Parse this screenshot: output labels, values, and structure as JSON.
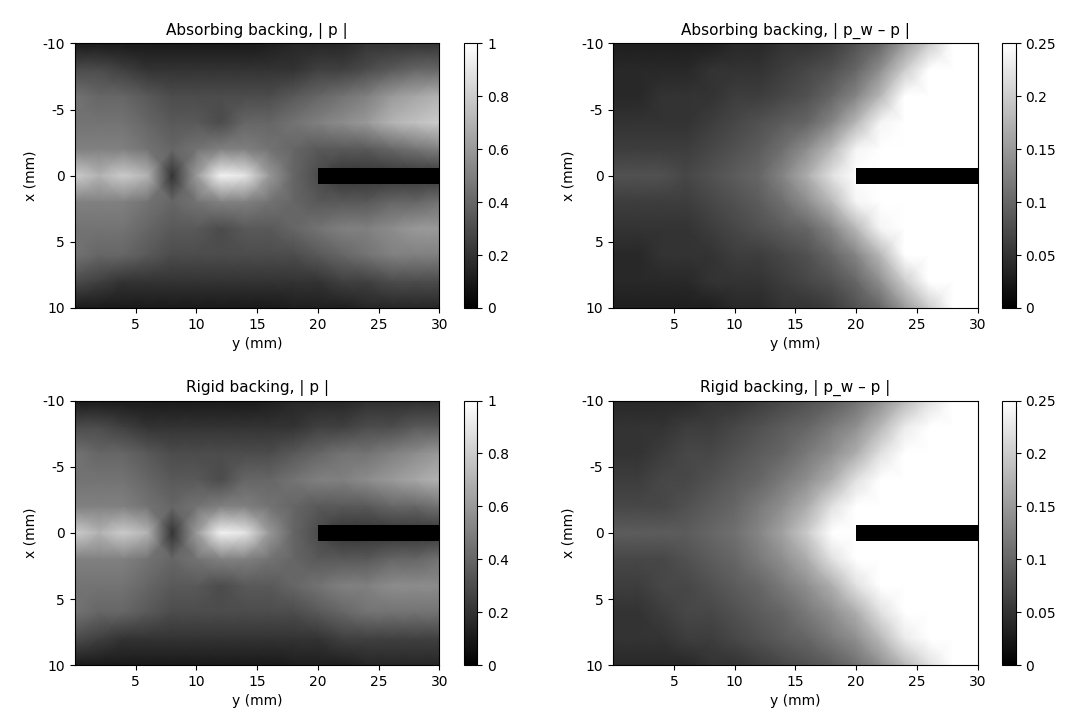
{
  "chart_data": [
    {
      "type": "heatmap",
      "title": "Absorbing backing, | p |",
      "x_label": "y (mm)",
      "y_label": "x (mm)",
      "x": [
        0,
        2,
        4,
        6,
        8,
        10,
        12,
        14,
        16,
        18,
        20,
        22,
        24,
        26,
        28,
        30
      ],
      "y": [
        -10,
        -8,
        -6,
        -4,
        -2,
        0,
        2,
        4,
        6,
        8,
        10
      ],
      "cells": [
        [
          0.1,
          0.1,
          0.1,
          0.1,
          0.1,
          0.1,
          0.1,
          0.1,
          0.12,
          0.15,
          0.15,
          0.15,
          0.2,
          0.2,
          0.2,
          0.2
        ],
        [
          0.3,
          0.3,
          0.25,
          0.2,
          0.2,
          0.2,
          0.2,
          0.2,
          0.2,
          0.2,
          0.25,
          0.25,
          0.3,
          0.35,
          0.4,
          0.4
        ],
        [
          0.45,
          0.4,
          0.4,
          0.35,
          0.3,
          0.3,
          0.3,
          0.3,
          0.3,
          0.35,
          0.4,
          0.45,
          0.5,
          0.6,
          0.65,
          0.7
        ],
        [
          0.45,
          0.45,
          0.45,
          0.4,
          0.35,
          0.35,
          0.3,
          0.4,
          0.4,
          0.45,
          0.5,
          0.55,
          0.6,
          0.7,
          0.75,
          0.8
        ],
        [
          0.5,
          0.5,
          0.5,
          0.45,
          0.4,
          0.45,
          0.5,
          0.5,
          0.45,
          0.4,
          0.35,
          0.35,
          0.35,
          0.4,
          0.45,
          0.5
        ],
        [
          0.8,
          0.7,
          0.8,
          0.7,
          0.2,
          0.6,
          0.95,
          0.9,
          0.6,
          0.4,
          0.3,
          0.2,
          0.2,
          0.2,
          0.2,
          0.2
        ],
        [
          0.5,
          0.5,
          0.5,
          0.45,
          0.4,
          0.45,
          0.5,
          0.5,
          0.45,
          0.4,
          0.35,
          0.35,
          0.35,
          0.4,
          0.4,
          0.45
        ],
        [
          0.45,
          0.45,
          0.45,
          0.4,
          0.35,
          0.35,
          0.3,
          0.35,
          0.35,
          0.4,
          0.45,
          0.5,
          0.5,
          0.55,
          0.6,
          0.6
        ],
        [
          0.45,
          0.4,
          0.4,
          0.35,
          0.3,
          0.3,
          0.3,
          0.3,
          0.3,
          0.3,
          0.35,
          0.4,
          0.45,
          0.5,
          0.5,
          0.5
        ],
        [
          0.3,
          0.25,
          0.2,
          0.2,
          0.2,
          0.2,
          0.2,
          0.2,
          0.2,
          0.2,
          0.2,
          0.25,
          0.25,
          0.3,
          0.3,
          0.3
        ],
        [
          0.1,
          0.1,
          0.1,
          0.1,
          0.1,
          0.1,
          0.1,
          0.1,
          0.1,
          0.12,
          0.12,
          0.12,
          0.15,
          0.15,
          0.15,
          0.15
        ]
      ],
      "xlim": [
        0,
        30
      ],
      "xticks": [
        5,
        10,
        15,
        20,
        25,
        30
      ],
      "ylim": [
        10,
        -10
      ],
      "yticks": [
        -10,
        -5,
        0,
        5,
        10
      ],
      "colorbar_range": [
        0,
        1
      ],
      "colorbar_ticks": [
        0,
        0.2,
        0.4,
        0.6,
        0.8,
        1
      ],
      "obstacle": {
        "x": [
          20,
          30
        ],
        "y": [
          -0.6,
          0.6
        ]
      }
    },
    {
      "type": "heatmap",
      "title": "Absorbing backing, | p_w – p |",
      "x_label": "y (mm)",
      "y_label": "x (mm)",
      "x": [
        0,
        2,
        4,
        6,
        8,
        10,
        12,
        14,
        16,
        18,
        20,
        22,
        24,
        26,
        28,
        30
      ],
      "y": [
        -10,
        -8,
        -6,
        -4,
        -2,
        0,
        2,
        4,
        6,
        8,
        10
      ],
      "cells": [
        [
          0.03,
          0.03,
          0.03,
          0.03,
          0.03,
          0.04,
          0.04,
          0.05,
          0.05,
          0.06,
          0.08,
          0.1,
          0.15,
          0.2,
          0.25,
          0.25
        ],
        [
          0.04,
          0.04,
          0.04,
          0.04,
          0.05,
          0.05,
          0.05,
          0.06,
          0.07,
          0.08,
          0.1,
          0.14,
          0.2,
          0.25,
          0.25,
          0.25
        ],
        [
          0.04,
          0.04,
          0.05,
          0.05,
          0.05,
          0.06,
          0.06,
          0.07,
          0.08,
          0.1,
          0.13,
          0.18,
          0.25,
          0.25,
          0.25,
          0.25
        ],
        [
          0.05,
          0.05,
          0.05,
          0.05,
          0.06,
          0.07,
          0.08,
          0.09,
          0.1,
          0.13,
          0.18,
          0.24,
          0.25,
          0.25,
          0.25,
          0.25
        ],
        [
          0.06,
          0.06,
          0.06,
          0.06,
          0.07,
          0.08,
          0.09,
          0.11,
          0.14,
          0.18,
          0.24,
          0.25,
          0.25,
          0.25,
          0.25,
          0.25
        ],
        [
          0.08,
          0.08,
          0.08,
          0.07,
          0.08,
          0.09,
          0.1,
          0.13,
          0.17,
          0.22,
          0.3,
          0.3,
          0.3,
          0.3,
          0.3,
          0.3
        ],
        [
          0.06,
          0.06,
          0.06,
          0.06,
          0.07,
          0.08,
          0.09,
          0.11,
          0.14,
          0.18,
          0.24,
          0.25,
          0.25,
          0.25,
          0.25,
          0.25
        ],
        [
          0.05,
          0.05,
          0.05,
          0.05,
          0.06,
          0.07,
          0.08,
          0.09,
          0.1,
          0.13,
          0.18,
          0.24,
          0.25,
          0.25,
          0.25,
          0.25
        ],
        [
          0.04,
          0.04,
          0.05,
          0.05,
          0.05,
          0.06,
          0.06,
          0.07,
          0.08,
          0.1,
          0.13,
          0.18,
          0.25,
          0.25,
          0.25,
          0.25
        ],
        [
          0.04,
          0.04,
          0.04,
          0.04,
          0.05,
          0.05,
          0.05,
          0.06,
          0.07,
          0.08,
          0.1,
          0.14,
          0.2,
          0.25,
          0.25,
          0.25
        ],
        [
          0.03,
          0.03,
          0.03,
          0.03,
          0.03,
          0.04,
          0.04,
          0.05,
          0.05,
          0.06,
          0.08,
          0.1,
          0.15,
          0.2,
          0.25,
          0.25
        ]
      ],
      "xlim": [
        0,
        30
      ],
      "xticks": [
        5,
        10,
        15,
        20,
        25,
        30
      ],
      "ylim": [
        10,
        -10
      ],
      "yticks": [
        -10,
        -5,
        0,
        5,
        10
      ],
      "colorbar_range": [
        0,
        0.25
      ],
      "colorbar_ticks": [
        0,
        0.05,
        0.1,
        0.15,
        0.2,
        0.25
      ],
      "obstacle": {
        "x": [
          20,
          30
        ],
        "y": [
          -0.6,
          0.6
        ]
      }
    },
    {
      "type": "heatmap",
      "title": "Rigid backing, | p |",
      "x_label": "y (mm)",
      "y_label": "x (mm)",
      "x": [
        0,
        2,
        4,
        6,
        8,
        10,
        12,
        14,
        16,
        18,
        20,
        22,
        24,
        26,
        28,
        30
      ],
      "y": [
        -10,
        -8,
        -6,
        -4,
        -2,
        0,
        2,
        4,
        6,
        8,
        10
      ],
      "cells": [
        [
          0.1,
          0.1,
          0.1,
          0.1,
          0.1,
          0.1,
          0.1,
          0.1,
          0.12,
          0.15,
          0.15,
          0.15,
          0.18,
          0.18,
          0.18,
          0.18
        ],
        [
          0.3,
          0.3,
          0.25,
          0.2,
          0.2,
          0.2,
          0.2,
          0.2,
          0.2,
          0.2,
          0.25,
          0.25,
          0.3,
          0.3,
          0.35,
          0.35
        ],
        [
          0.45,
          0.4,
          0.4,
          0.35,
          0.3,
          0.3,
          0.3,
          0.3,
          0.3,
          0.35,
          0.4,
          0.45,
          0.45,
          0.5,
          0.55,
          0.6
        ],
        [
          0.45,
          0.45,
          0.45,
          0.4,
          0.35,
          0.35,
          0.3,
          0.4,
          0.4,
          0.45,
          0.5,
          0.5,
          0.55,
          0.6,
          0.65,
          0.7
        ],
        [
          0.5,
          0.5,
          0.5,
          0.45,
          0.4,
          0.45,
          0.5,
          0.5,
          0.45,
          0.4,
          0.35,
          0.35,
          0.35,
          0.4,
          0.4,
          0.45
        ],
        [
          0.8,
          0.7,
          0.8,
          0.7,
          0.2,
          0.6,
          0.95,
          0.9,
          0.6,
          0.4,
          0.3,
          0.2,
          0.2,
          0.2,
          0.2,
          0.2
        ],
        [
          0.5,
          0.5,
          0.5,
          0.45,
          0.4,
          0.45,
          0.5,
          0.5,
          0.45,
          0.4,
          0.35,
          0.35,
          0.35,
          0.4,
          0.4,
          0.45
        ],
        [
          0.45,
          0.45,
          0.45,
          0.4,
          0.35,
          0.35,
          0.3,
          0.35,
          0.35,
          0.4,
          0.45,
          0.5,
          0.5,
          0.55,
          0.55,
          0.55
        ],
        [
          0.45,
          0.4,
          0.4,
          0.35,
          0.3,
          0.3,
          0.3,
          0.3,
          0.3,
          0.3,
          0.35,
          0.4,
          0.45,
          0.45,
          0.45,
          0.45
        ],
        [
          0.3,
          0.25,
          0.2,
          0.2,
          0.2,
          0.2,
          0.2,
          0.2,
          0.2,
          0.2,
          0.2,
          0.25,
          0.25,
          0.25,
          0.25,
          0.25
        ],
        [
          0.1,
          0.1,
          0.1,
          0.1,
          0.1,
          0.1,
          0.1,
          0.1,
          0.1,
          0.12,
          0.12,
          0.12,
          0.15,
          0.15,
          0.15,
          0.15
        ]
      ],
      "xlim": [
        0,
        30
      ],
      "xticks": [
        5,
        10,
        15,
        20,
        25,
        30
      ],
      "ylim": [
        10,
        -10
      ],
      "yticks": [
        -10,
        -5,
        0,
        5,
        10
      ],
      "colorbar_range": [
        0,
        1
      ],
      "colorbar_ticks": [
        0,
        0.2,
        0.4,
        0.6,
        0.8,
        1
      ],
      "obstacle": {
        "x": [
          20,
          30
        ],
        "y": [
          -0.6,
          0.6
        ]
      }
    },
    {
      "type": "heatmap",
      "title": "Rigid backing, | p_w – p |",
      "x_label": "y (mm)",
      "y_label": "x (mm)",
      "x": [
        0,
        2,
        4,
        6,
        8,
        10,
        12,
        14,
        16,
        18,
        20,
        22,
        24,
        26,
        28,
        30
      ],
      "y": [
        -10,
        -8,
        -6,
        -4,
        -2,
        0,
        2,
        4,
        6,
        8,
        10
      ],
      "cells": [
        [
          0.04,
          0.04,
          0.04,
          0.04,
          0.05,
          0.05,
          0.06,
          0.07,
          0.08,
          0.09,
          0.11,
          0.14,
          0.18,
          0.22,
          0.25,
          0.25
        ],
        [
          0.05,
          0.05,
          0.05,
          0.06,
          0.06,
          0.07,
          0.08,
          0.09,
          0.1,
          0.12,
          0.14,
          0.18,
          0.23,
          0.25,
          0.25,
          0.25
        ],
        [
          0.05,
          0.05,
          0.06,
          0.07,
          0.07,
          0.08,
          0.09,
          0.1,
          0.12,
          0.14,
          0.17,
          0.22,
          0.25,
          0.25,
          0.25,
          0.25
        ],
        [
          0.06,
          0.06,
          0.07,
          0.07,
          0.08,
          0.09,
          0.1,
          0.12,
          0.14,
          0.17,
          0.22,
          0.25,
          0.25,
          0.25,
          0.25,
          0.25
        ],
        [
          0.07,
          0.07,
          0.07,
          0.08,
          0.09,
          0.1,
          0.12,
          0.14,
          0.17,
          0.22,
          0.26,
          0.26,
          0.26,
          0.26,
          0.26,
          0.26
        ],
        [
          0.09,
          0.09,
          0.09,
          0.09,
          0.1,
          0.11,
          0.13,
          0.16,
          0.2,
          0.26,
          0.3,
          0.3,
          0.3,
          0.3,
          0.3,
          0.3
        ],
        [
          0.07,
          0.07,
          0.07,
          0.08,
          0.09,
          0.1,
          0.12,
          0.14,
          0.17,
          0.22,
          0.26,
          0.26,
          0.26,
          0.26,
          0.26,
          0.26
        ],
        [
          0.06,
          0.06,
          0.07,
          0.07,
          0.08,
          0.09,
          0.1,
          0.12,
          0.14,
          0.17,
          0.22,
          0.25,
          0.25,
          0.25,
          0.25,
          0.25
        ],
        [
          0.05,
          0.05,
          0.06,
          0.07,
          0.07,
          0.08,
          0.09,
          0.1,
          0.12,
          0.14,
          0.17,
          0.22,
          0.25,
          0.25,
          0.25,
          0.25
        ],
        [
          0.05,
          0.05,
          0.05,
          0.06,
          0.06,
          0.07,
          0.08,
          0.09,
          0.1,
          0.12,
          0.14,
          0.18,
          0.23,
          0.25,
          0.25,
          0.25
        ],
        [
          0.04,
          0.04,
          0.04,
          0.04,
          0.05,
          0.05,
          0.06,
          0.07,
          0.08,
          0.09,
          0.11,
          0.14,
          0.18,
          0.22,
          0.25,
          0.25
        ]
      ],
      "xlim": [
        0,
        30
      ],
      "xticks": [
        5,
        10,
        15,
        20,
        25,
        30
      ],
      "ylim": [
        10,
        -10
      ],
      "yticks": [
        -10,
        -5,
        0,
        5,
        10
      ],
      "colorbar_range": [
        0,
        0.25
      ],
      "colorbar_ticks": [
        0,
        0.05,
        0.1,
        0.15,
        0.2,
        0.25
      ],
      "obstacle": {
        "x": [
          20,
          30
        ],
        "y": [
          -0.6,
          0.6
        ]
      }
    }
  ]
}
